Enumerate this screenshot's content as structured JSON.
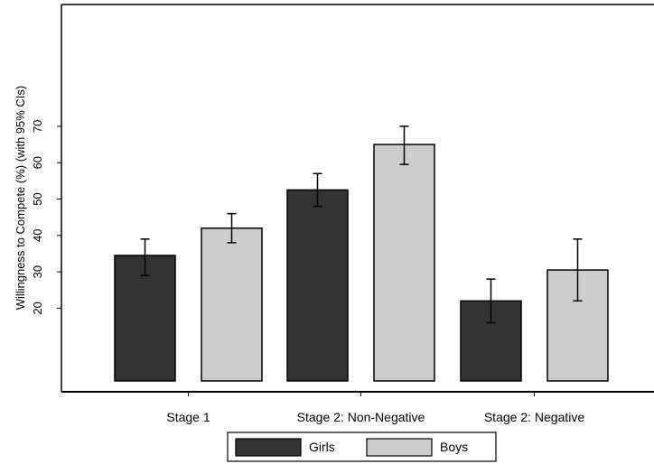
{
  "chart_data": {
    "type": "bar",
    "title": "",
    "xlabel": "",
    "ylabel": "Willingness to Compete (%) (with 95% CIs)",
    "ylim": [
      0,
      90
    ],
    "yticks": [
      20,
      30,
      40,
      50,
      60,
      70
    ],
    "grid": false,
    "legend_position": "bottom",
    "categories": [
      "Stage 1",
      "Stage 2: Non-Negative",
      "Stage 2: Negative"
    ],
    "series": [
      {
        "name": "Girls",
        "color": "#333333",
        "values": [
          34.5,
          52.5,
          22
        ],
        "ci_low": [
          29,
          48,
          16
        ],
        "ci_high": [
          39,
          57,
          28
        ]
      },
      {
        "name": "Boys",
        "color": "#cccccc",
        "values": [
          42,
          65,
          30.5
        ],
        "ci_low": [
          38,
          59.5,
          22
        ],
        "ci_high": [
          46,
          70,
          39
        ]
      }
    ]
  }
}
